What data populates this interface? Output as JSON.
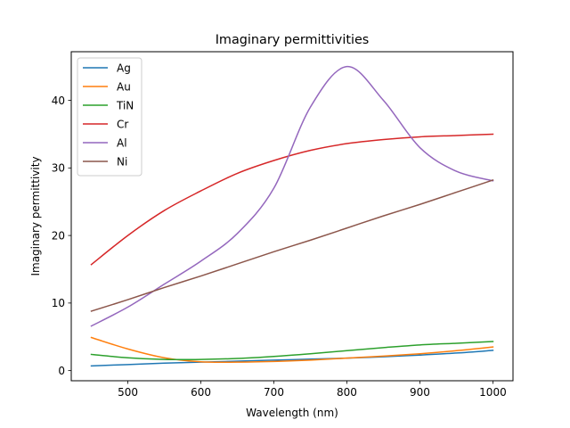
{
  "chart_data": {
    "type": "line",
    "title": "Imaginary permittivities",
    "xlabel": "Wavelength (nm)",
    "ylabel": "Imaginary permittivity",
    "xlim": [
      422.5,
      1027.5
    ],
    "ylim": [
      -1.5,
      47.2
    ],
    "xticks": [
      500,
      600,
      700,
      800,
      900,
      1000
    ],
    "yticks": [
      0,
      10,
      20,
      30,
      40
    ],
    "grid": false,
    "legend_position": "top-left",
    "x": [
      450,
      500,
      550,
      600,
      650,
      700,
      750,
      800,
      850,
      900,
      950,
      1000
    ],
    "series": [
      {
        "name": "Ag",
        "color": "#1f77b4",
        "values": [
          0.7,
          0.9,
          1.1,
          1.25,
          1.4,
          1.55,
          1.7,
          1.85,
          2.05,
          2.3,
          2.6,
          3.0
        ]
      },
      {
        "name": "Au",
        "color": "#ff7f0e",
        "values": [
          4.9,
          3.2,
          1.9,
          1.3,
          1.25,
          1.35,
          1.55,
          1.85,
          2.15,
          2.5,
          2.95,
          3.5
        ]
      },
      {
        "name": "TiN",
        "color": "#2ca02c",
        "values": [
          2.4,
          1.9,
          1.65,
          1.65,
          1.8,
          2.1,
          2.5,
          2.95,
          3.4,
          3.8,
          4.05,
          4.3
        ]
      },
      {
        "name": "Cr",
        "color": "#d62728",
        "values": [
          15.7,
          20.0,
          23.7,
          26.6,
          29.2,
          31.1,
          32.6,
          33.6,
          34.2,
          34.6,
          34.8,
          35.0
        ]
      },
      {
        "name": "Al",
        "color": "#9467bd",
        "values": [
          6.6,
          9.4,
          12.8,
          16.2,
          20.3,
          27.0,
          39.0,
          45.0,
          40.0,
          33.0,
          29.5,
          28.1
        ]
      },
      {
        "name": "Ni",
        "color": "#8c564b",
        "values": [
          8.8,
          10.5,
          12.3,
          14.0,
          15.8,
          17.6,
          19.3,
          21.1,
          22.9,
          24.6,
          26.4,
          28.2
        ]
      }
    ]
  }
}
